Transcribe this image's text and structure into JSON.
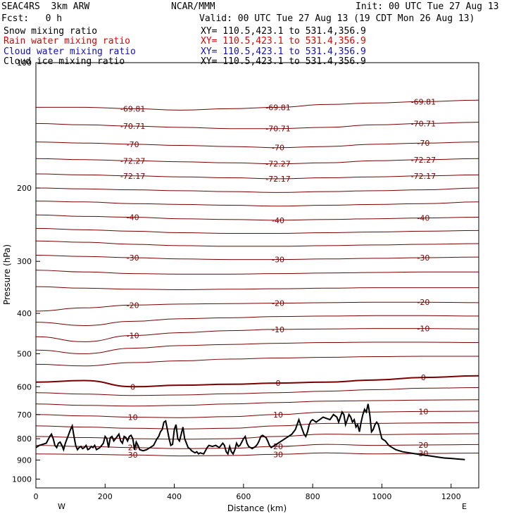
{
  "header": {
    "model": "SEAC4RS  3km ARW",
    "org": "NCAR/MMM",
    "init": "Init: 00 UTC Tue 27 Aug 13",
    "fcst": "Fcst:   0 h",
    "valid": "Valid: 00 UTC Tue 27 Aug 13 (19 CDT Mon 26 Aug 13)"
  },
  "legend": [
    {
      "field": "Snow mixing ratio",
      "xy": "XY= 110.5,423.1 to 531.4,356.9",
      "color": "#000000"
    },
    {
      "field": "Rain water mixing ratio",
      "xy": "XY= 110.5,423.1 to 531.4,356.9",
      "color": "#e00000"
    },
    {
      "field": "Cloud water mixing ratio",
      "xy": "XY= 110.5,423.1 to 531.4,356.9",
      "color": "#1010c0"
    },
    {
      "field": "Cloud ice mixing ratio",
      "xy": "XY= 110.5,423.1 to 531.4,356.9",
      "color": "#000000"
    }
  ],
  "colors": {
    "isotherm": "#7a0000",
    "zero_isotherm": "#7a0000",
    "terrain": "#000000",
    "frame": "#000000"
  },
  "chart_data": {
    "type": "line",
    "title": "",
    "xlabel": "Distance (km)",
    "ylabel": "Pressure (hPa)",
    "xlim": [
      0,
      1280
    ],
    "ylim": [
      1050,
      100
    ],
    "y_scale": "log",
    "x_ticks": [
      "0",
      "200",
      "400",
      "600",
      "800",
      "1000",
      "1200"
    ],
    "y_ticks": [
      "200",
      "300",
      "400",
      "500",
      "600",
      "700",
      "800",
      "900",
      "1000"
    ],
    "top_y_tick": "100",
    "direction_labels": [
      "W",
      "E"
    ],
    "terrain": {
      "x": [
        0,
        10,
        20,
        30,
        40,
        45,
        50,
        55,
        60,
        65,
        70,
        75,
        80,
        85,
        90,
        95,
        100,
        105,
        110,
        115,
        120,
        125,
        130,
        135,
        140,
        145,
        150,
        155,
        160,
        165,
        170,
        175,
        180,
        185,
        190,
        195,
        200,
        205,
        210,
        215,
        220,
        225,
        230,
        235,
        240,
        245,
        250,
        255,
        260,
        265,
        270,
        275,
        280,
        285,
        290,
        295,
        300,
        310,
        320,
        330,
        340,
        350,
        355,
        360,
        365,
        370,
        375,
        380,
        385,
        390,
        395,
        400,
        405,
        410,
        415,
        420,
        425,
        430,
        435,
        440,
        445,
        450,
        455,
        460,
        465,
        470,
        475,
        480,
        485,
        490,
        495,
        500,
        510,
        520,
        530,
        540,
        545,
        550,
        555,
        560,
        565,
        570,
        575,
        580,
        585,
        590,
        595,
        600,
        605,
        610,
        615,
        620,
        625,
        630,
        635,
        640,
        645,
        650,
        655,
        660,
        665,
        670,
        675,
        680,
        685,
        690,
        700,
        710,
        720,
        730,
        740,
        750,
        755,
        760,
        765,
        770,
        775,
        780,
        785,
        790,
        795,
        800,
        810,
        820,
        830,
        840,
        850,
        860,
        870,
        875,
        880,
        885,
        890,
        895,
        900,
        905,
        910,
        915,
        920,
        925,
        930,
        935,
        940,
        945,
        950,
        955,
        960,
        965,
        970,
        975,
        980,
        985,
        990,
        995,
        1000,
        1010,
        1020,
        1030,
        1040,
        1060,
        1080,
        1100,
        1120,
        1140,
        1160,
        1180,
        1200,
        1220,
        1240,
        1260,
        1280
      ],
      "p": [
        840,
        830,
        825,
        820,
        790,
        780,
        800,
        830,
        840,
        820,
        815,
        830,
        850,
        820,
        800,
        780,
        760,
        745,
        790,
        830,
        850,
        840,
        835,
        845,
        840,
        830,
        850,
        845,
        835,
        840,
        830,
        850,
        845,
        840,
        830,
        820,
        790,
        800,
        840,
        795,
        790,
        810,
        800,
        790,
        780,
        810,
        820,
        790,
        795,
        810,
        790,
        785,
        800,
        850,
        815,
        830,
        850,
        855,
        850,
        840,
        830,
        800,
        790,
        770,
        760,
        730,
        725,
        760,
        800,
        830,
        825,
        760,
        740,
        800,
        810,
        780,
        750,
        800,
        820,
        840,
        845,
        855,
        860,
        865,
        860,
        870,
        865,
        868,
        870,
        855,
        840,
        830,
        835,
        830,
        840,
        820,
        830,
        860,
        870,
        835,
        860,
        870,
        850,
        820,
        835,
        830,
        815,
        800,
        790,
        820,
        835,
        840,
        845,
        840,
        835,
        825,
        810,
        790,
        785,
        790,
        795,
        810,
        830,
        840,
        835,
        830,
        820,
        810,
        800,
        790,
        780,
        760,
        740,
        720,
        740,
        760,
        780,
        790,
        770,
        740,
        725,
        720,
        730,
        720,
        710,
        715,
        720,
        700,
        710,
        730,
        710,
        690,
        700,
        740,
        720,
        700,
        710,
        730,
        720,
        750,
        740,
        770,
        730,
        700,
        680,
        690,
        660,
        700,
        770,
        760,
        740,
        730,
        740,
        770,
        800,
        810,
        830,
        840,
        850,
        860,
        865,
        870,
        875,
        880,
        885,
        890,
        892,
        895,
        898
      ]
    },
    "isotherms": [
      {
        "label": "-69.81",
        "p": [
          128,
          128,
          129,
          130,
          129,
          128,
          126,
          125,
          124,
          123
        ]
      },
      {
        "label": "-70.71",
        "p": [
          140,
          141,
          142,
          143,
          144,
          144,
          143,
          141,
          140,
          139
        ]
      },
      {
        "label": "-70",
        "p": [
          155,
          156,
          157,
          158,
          159,
          160,
          159,
          157,
          156,
          155
        ]
      },
      {
        "label": "-72.27",
        "p": [
          170,
          171,
          172,
          173,
          174,
          175,
          174,
          172,
          171,
          170
        ]
      },
      {
        "label": "-72.17",
        "p": [
          185,
          186,
          187,
          188,
          189,
          190,
          189,
          188,
          187,
          186
        ]
      },
      {
        "label": "",
        "p": [
          200,
          201,
          202,
          203,
          204,
          205,
          204,
          203,
          202,
          200
        ]
      },
      {
        "label": "",
        "p": [
          215,
          216,
          218,
          219,
          220,
          221,
          220,
          219,
          218,
          216
        ]
      },
      {
        "label": "-40",
        "p": [
          232,
          234,
          235,
          237,
          238,
          239,
          238,
          237,
          236,
          235
        ]
      },
      {
        "label": "",
        "p": [
          250,
          252,
          254,
          256,
          257,
          257,
          256,
          255,
          254,
          253
        ]
      },
      {
        "label": "",
        "p": [
          268,
          270,
          273,
          275,
          276,
          276,
          275,
          274,
          273,
          272
        ]
      },
      {
        "label": "-30",
        "p": [
          290,
          292,
          294,
          296,
          297,
          297,
          296,
          295,
          294,
          293
        ]
      },
      {
        "label": "",
        "p": [
          315,
          318,
          321,
          322,
          322,
          321,
          320,
          319,
          318,
          318
        ]
      },
      {
        "label": "",
        "p": [
          345,
          348,
          350,
          351,
          350,
          349,
          348,
          347,
          347,
          347
        ]
      },
      {
        "label": "-20",
        "p": [
          395,
          388,
          382,
          380,
          379,
          378,
          377,
          376,
          376,
          377
        ]
      },
      {
        "label": "",
        "p": [
          420,
          428,
          418,
          412,
          410,
          407,
          406,
          405,
          405,
          406
        ]
      },
      {
        "label": "-10",
        "p": [
          455,
          468,
          452,
          445,
          440,
          437,
          436,
          435,
          435,
          436
        ]
      },
      {
        "label": "",
        "p": [
          490,
          500,
          485,
          478,
          475,
          472,
          470,
          469,
          469,
          470
        ]
      },
      {
        "label": "",
        "p": [
          530,
          535,
          525,
          520,
          515,
          512,
          510,
          508,
          507,
          507
        ]
      },
      {
        "label": "0",
        "p": [
          585,
          580,
          600,
          595,
          592,
          588,
          585,
          578,
          570,
          565
        ]
      },
      {
        "label": "",
        "p": [
          620,
          625,
          630,
          628,
          624,
          620,
          615,
          610,
          605,
          603
        ]
      },
      {
        "label": "",
        "p": [
          660,
          665,
          668,
          665,
          660,
          655,
          650,
          648,
          646,
          645
        ]
      },
      {
        "label": "10",
        "p": [
          700,
          705,
          710,
          712,
          708,
          700,
          690,
          690,
          688,
          687
        ]
      },
      {
        "label": "",
        "p": [
          745,
          750,
          755,
          758,
          755,
          745,
          735,
          735,
          733,
          732
        ]
      },
      {
        "label": "",
        "p": [
          790,
          795,
          800,
          802,
          800,
          790,
          780,
          782,
          780,
          778
        ]
      },
      {
        "label": "20",
        "p": [
          830,
          835,
          840,
          845,
          843,
          835,
          825,
          830,
          828,
          826
        ]
      },
      {
        "label": "30",
        "p": [
          870,
          872,
          875,
          880,
          878,
          872,
          865,
          870,
          868,
          866
        ]
      }
    ],
    "isotherm_x": [
      0,
      140,
      280,
      420,
      560,
      700,
      840,
      980,
      1120,
      1280
    ]
  }
}
